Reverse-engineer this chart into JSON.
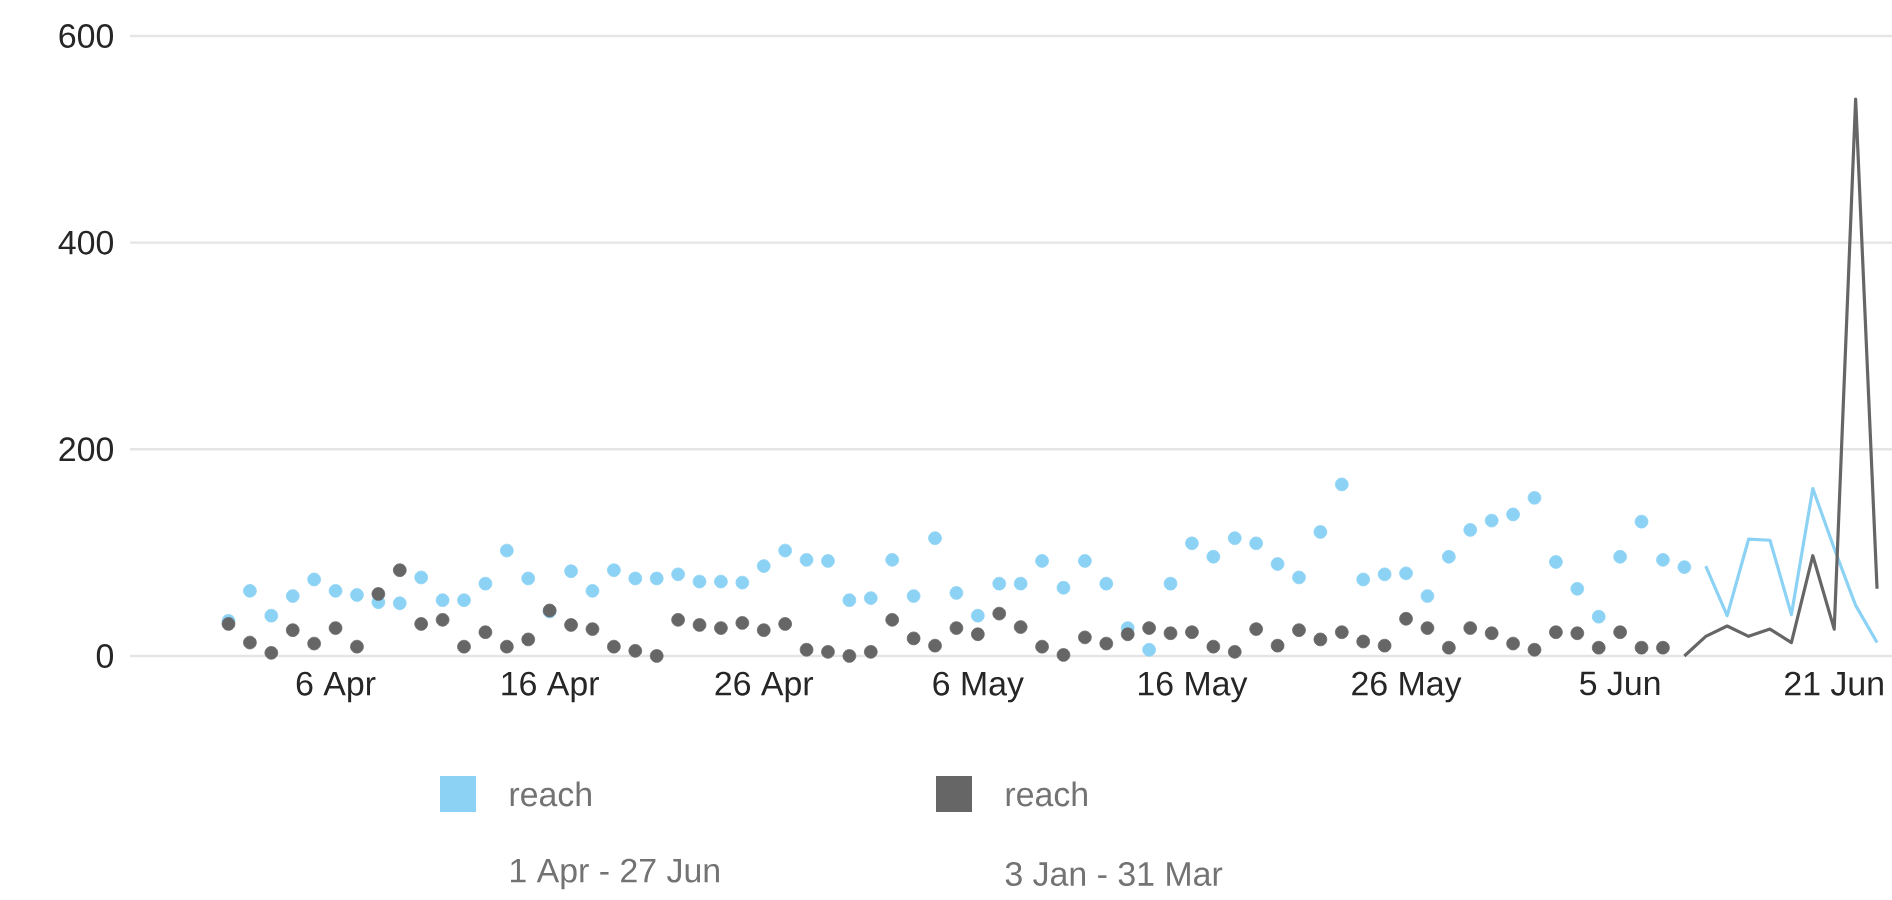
{
  "chart_data": {
    "type": "scatter",
    "categories": [
      null,
      null,
      null,
      null,
      null,
      "6 Apr",
      null,
      null,
      null,
      null,
      null,
      null,
      null,
      null,
      null,
      "16 Apr",
      null,
      null,
      null,
      null,
      null,
      null,
      null,
      null,
      null,
      "26 Apr",
      null,
      null,
      null,
      null,
      null,
      null,
      null,
      null,
      null,
      "6 May",
      null,
      null,
      null,
      null,
      null,
      null,
      null,
      null,
      null,
      "16 May",
      null,
      null,
      null,
      null,
      null,
      null,
      null,
      null,
      null,
      "26 May",
      null,
      null,
      null,
      null,
      null,
      null,
      null,
      null,
      null,
      "5 Jun",
      null,
      null,
      null,
      null,
      null,
      null,
      null,
      null,
      null,
      "21 Jun",
      null,
      null
    ],
    "series": [
      {
        "name": "reach",
        "color": "#8cd2f5",
        "values": [
          34,
          63,
          39,
          58,
          74,
          63,
          59,
          52,
          51,
          76,
          54,
          54,
          70,
          102,
          75,
          43,
          82,
          63,
          83,
          75,
          75,
          79,
          72,
          72,
          71,
          87,
          102,
          93,
          92,
          54,
          56,
          93,
          58,
          114,
          61,
          39,
          70,
          70,
          92,
          66,
          92,
          70,
          27,
          6,
          70,
          109,
          96,
          114,
          109,
          89,
          76,
          120,
          166,
          74,
          79,
          80,
          58,
          96,
          122,
          131,
          137,
          153,
          91,
          65,
          38,
          96,
          130,
          93,
          86,
          null,
          null,
          null,
          null,
          null,
          null,
          null,
          null,
          null
        ]
      },
      {
        "name": "reach",
        "color": "#666666",
        "values": [
          31,
          13,
          3,
          25,
          12,
          27,
          9,
          60,
          83,
          31,
          35,
          9,
          23,
          9,
          16,
          44,
          30,
          26,
          9,
          5,
          0,
          35,
          30,
          27,
          32,
          25,
          31,
          6,
          4,
          0,
          4,
          35,
          17,
          10,
          27,
          21,
          41,
          28,
          9,
          1,
          18,
          12,
          21,
          27,
          22,
          23,
          9,
          4,
          26,
          10,
          25,
          16,
          23,
          14,
          10,
          36,
          27,
          8,
          27,
          22,
          12,
          6,
          23,
          22,
          8,
          23,
          8,
          8,
          null,
          null,
          null,
          null,
          null,
          null,
          null,
          null,
          null,
          null
        ]
      },
      {
        "type": "line",
        "marker": "none",
        "color": "#8cd2f5",
        "values": [
          null,
          null,
          null,
          null,
          null,
          null,
          null,
          null,
          null,
          null,
          null,
          null,
          null,
          null,
          null,
          null,
          null,
          null,
          null,
          null,
          null,
          null,
          null,
          null,
          null,
          null,
          null,
          null,
          null,
          null,
          null,
          null,
          null,
          null,
          null,
          null,
          null,
          null,
          null,
          null,
          null,
          null,
          null,
          null,
          null,
          null,
          null,
          null,
          null,
          null,
          null,
          null,
          null,
          null,
          null,
          null,
          null,
          null,
          null,
          null,
          null,
          null,
          null,
          null,
          null,
          null,
          null,
          null,
          null,
          87,
          39,
          113,
          112,
          40,
          162,
          104,
          49,
          13
        ]
      },
      {
        "type": "line",
        "marker": "none",
        "color": "#666666",
        "values": [
          null,
          null,
          null,
          null,
          null,
          null,
          null,
          null,
          null,
          null,
          null,
          null,
          null,
          null,
          null,
          null,
          null,
          null,
          null,
          null,
          null,
          null,
          null,
          null,
          null,
          null,
          null,
          null,
          null,
          null,
          null,
          null,
          null,
          null,
          null,
          null,
          null,
          null,
          null,
          null,
          null,
          null,
          null,
          null,
          null,
          null,
          null,
          null,
          null,
          null,
          null,
          null,
          null,
          null,
          null,
          null,
          null,
          null,
          null,
          null,
          null,
          null,
          null,
          null,
          null,
          null,
          null,
          null,
          0,
          19,
          29,
          19,
          26,
          13,
          97,
          26,
          539,
          65
        ]
      }
    ],
    "annotations": [
      "1 Apr - 27 Jun",
      "3 Jan - 31 Mar"
    ],
    "ylim": [
      0,
      600
    ],
    "yticks": [
      0,
      200,
      400,
      600
    ],
    "grid": "y",
    "legend": "bottom",
    "marker": "circle"
  }
}
